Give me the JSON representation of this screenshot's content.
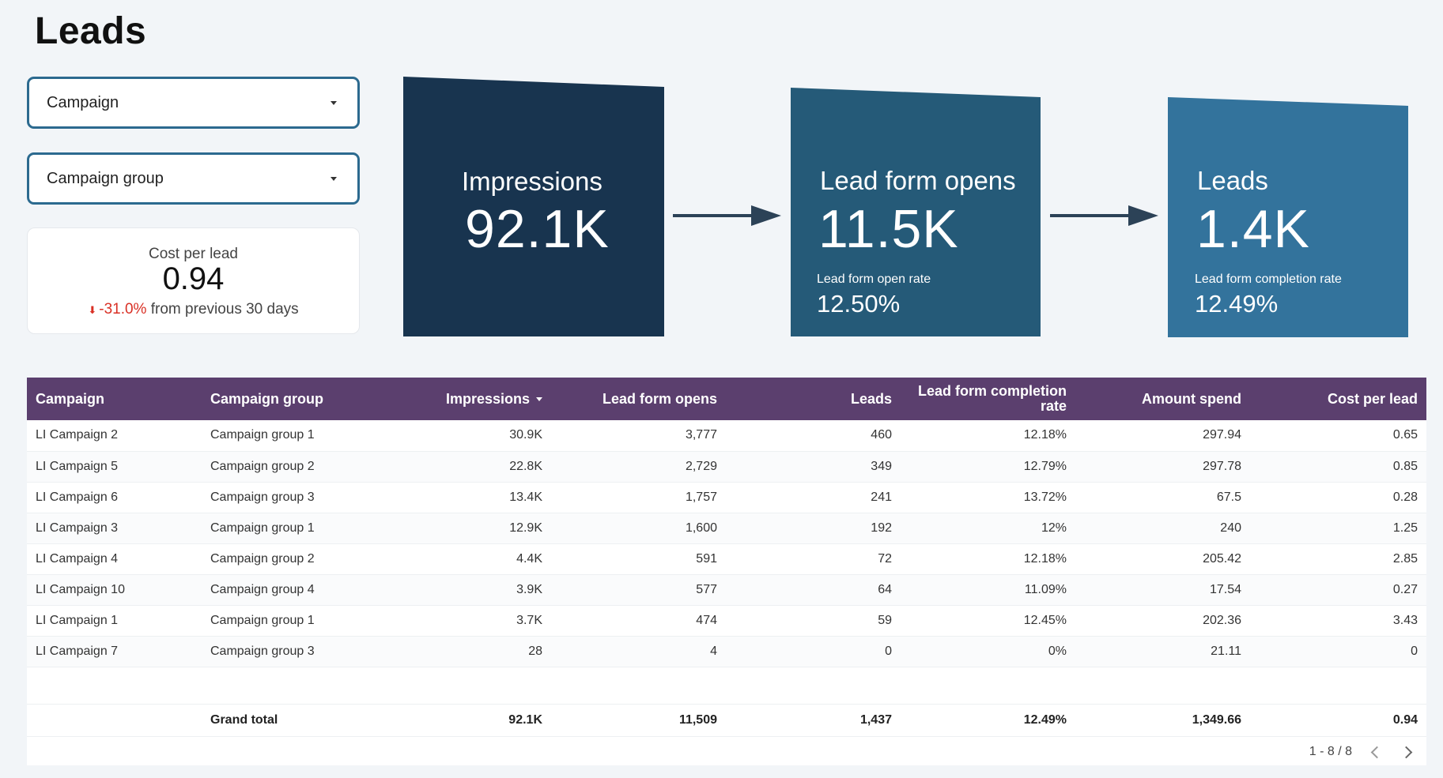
{
  "page": {
    "title": "Leads"
  },
  "filters": {
    "campaign": {
      "label": "Campaign"
    },
    "campaign_group": {
      "label": "Campaign group"
    }
  },
  "kpi": {
    "label": "Cost per lead",
    "value": "0.94",
    "change": "-31.0%",
    "change_suffix": "from previous 30 days",
    "change_direction": "down",
    "change_color": "#d93025"
  },
  "funnel": {
    "impressions": {
      "label": "Impressions",
      "value": "92.1K",
      "color": "#18344f"
    },
    "lead_form_opens": {
      "label": "Lead form opens",
      "value": "11.5K",
      "sub_label": "Lead form open rate",
      "sub_value": "12.50%",
      "color": "#255a78"
    },
    "leads": {
      "label": "Leads",
      "value": "1.4K",
      "sub_label": "Lead form completion rate",
      "sub_value": "12.49%",
      "color": "#33739c"
    },
    "arrow_icon": "right-arrow-icon"
  },
  "table": {
    "header_color": "#5b3f6e",
    "columns": [
      "Campaign",
      "Campaign group",
      "Impressions",
      "Lead form opens",
      "Leads",
      "Lead form completion rate",
      "Amount spend",
      "Cost per lead"
    ],
    "column_line1": "Lead form completion",
    "column_line2": "rate",
    "sorted_by": "Impressions",
    "rows": [
      [
        "LI Campaign 2",
        "Campaign group 1",
        "30.9K",
        "3,777",
        "460",
        "12.18%",
        "297.94",
        "0.65"
      ],
      [
        "LI Campaign 5",
        "Campaign group 2",
        "22.8K",
        "2,729",
        "349",
        "12.79%",
        "297.78",
        "0.85"
      ],
      [
        "LI Campaign 6",
        "Campaign group 3",
        "13.4K",
        "1,757",
        "241",
        "13.72%",
        "67.5",
        "0.28"
      ],
      [
        "LI Campaign 3",
        "Campaign group 1",
        "12.9K",
        "1,600",
        "192",
        "12%",
        "240",
        "1.25"
      ],
      [
        "LI Campaign 4",
        "Campaign group 2",
        "4.4K",
        "591",
        "72",
        "12.18%",
        "205.42",
        "2.85"
      ],
      [
        "LI Campaign 10",
        "Campaign group 4",
        "3.9K",
        "577",
        "64",
        "11.09%",
        "17.54",
        "0.27"
      ],
      [
        "LI Campaign 1",
        "Campaign group 1",
        "3.7K",
        "474",
        "59",
        "12.45%",
        "202.36",
        "3.43"
      ],
      [
        "LI Campaign 7",
        "Campaign group 3",
        "28",
        "4",
        "0",
        "0%",
        "21.11",
        "0"
      ]
    ],
    "total": [
      "",
      "Grand total",
      "92.1K",
      "11,509",
      "1,437",
      "12.49%",
      "1,349.66",
      "0.94"
    ],
    "pagination": "1 - 8 / 8"
  }
}
